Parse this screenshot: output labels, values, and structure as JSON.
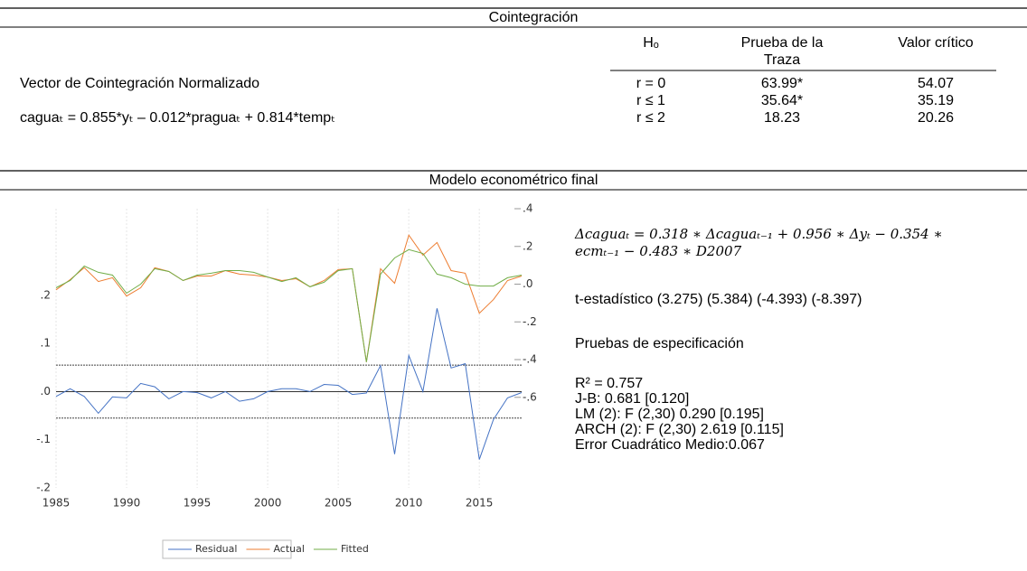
{
  "cointegration": {
    "title": "Cointegración",
    "headers": [
      "Hₒ",
      "Prueba de la Traza",
      "Valor crítico"
    ],
    "rows": [
      [
        "r = 0",
        "63.99*",
        "54.07"
      ],
      [
        "r ≤ 1",
        "35.64*",
        "35.19"
      ],
      [
        "r ≤ 2",
        "18.23",
        "20.26"
      ]
    ],
    "vector_label": "Vector de Cointegración Normalizado",
    "vector_equation": "caguaₜ = 0.855*yₜ – 0.012*praguaₜ + 0.814*tempₜ"
  },
  "model": {
    "title": "Modelo econométrico final",
    "equation": [
      "Δcaguaₜ = 0.318 ∗ Δcaguaₜ₋₁ + 0.956 ∗ Δyₜ − 0.354 ∗",
      "ecmₜ₋₁ − 0.483 ∗ D2007"
    ],
    "t_stats": "t-estadístico (3.275)  (5.384) (-4.393)  (-8.397)",
    "tests_title": "Pruebas de especificación",
    "tests": [
      "R² = 0.757",
      "J-B: 0.681 [0.120]",
      "LM (2): F (2,30) 0.290 [0.195]",
      "ARCH (2): F (2,30) 2.619 [0.115]",
      "Error Cuadrático Medio:0.067"
    ]
  },
  "chart_data": {
    "type": "line",
    "x": [
      1985,
      1986,
      1987,
      1988,
      1989,
      1990,
      1991,
      1992,
      1993,
      1994,
      1995,
      1996,
      1997,
      1998,
      1999,
      2000,
      2001,
      2002,
      2003,
      2004,
      2005,
      2006,
      2007,
      2008,
      2009,
      2010,
      2011,
      2012,
      2013,
      2014,
      2015,
      2016,
      2017,
      2018
    ],
    "xlim": [
      1985,
      2018
    ],
    "xticks": [
      1985,
      1990,
      1995,
      2000,
      2005,
      2010,
      2015
    ],
    "ylim": [
      -0.2,
      0.38
    ],
    "yticks": [
      {
        "value": 0.2,
        "label": ".2"
      },
      {
        "value": 0.1,
        "label": ".1"
      },
      {
        "value": 0,
        "label": ".0"
      },
      {
        "value": -0.1,
        "label": "-.1"
      },
      {
        "value": -0.2,
        "label": "-.2"
      }
    ],
    "y2lim": [
      -1.08,
      0.4
    ],
    "y2ticks": [
      {
        "value": 0.4,
        "label": ".4"
      },
      {
        "value": 0.2,
        "label": ".2"
      },
      {
        "value": 0,
        "label": ".0"
      },
      {
        "value": -0.2,
        "label": "-.2"
      },
      {
        "value": -0.4,
        "label": "-.4"
      },
      {
        "value": -0.6,
        "label": "-.6"
      }
    ],
    "bands": [
      0.055,
      -0.055
    ],
    "grid": true,
    "series": [
      {
        "name": "Residual",
        "color": "#4472c4",
        "axis": "y",
        "values": [
          -0.01,
          0.006,
          -0.01,
          -0.045,
          -0.011,
          -0.013,
          0.017,
          0.01,
          -0.015,
          0.0,
          -0.002,
          -0.013,
          0.0,
          -0.02,
          -0.015,
          0.0,
          0.006,
          0.006,
          0.0,
          0.015,
          0.013,
          -0.006,
          -0.003,
          0.054,
          -0.13,
          0.075,
          0.0,
          0.173,
          0.049,
          0.058,
          -0.141,
          -0.058,
          -0.013,
          -0.002
        ]
      },
      {
        "name": "Actual",
        "color": "#ed7d31",
        "axis": "y2",
        "values": [
          -0.03,
          0.024,
          0.087,
          0.014,
          0.034,
          -0.063,
          -0.019,
          0.087,
          0.067,
          0.019,
          0.043,
          0.043,
          0.072,
          0.053,
          0.048,
          0.038,
          0.019,
          0.029,
          -0.014,
          0.019,
          0.077,
          0.082,
          -0.413,
          0.082,
          0.005,
          0.26,
          0.154,
          0.221,
          0.072,
          0.058,
          -0.154,
          -0.082,
          0.019,
          0.043
        ]
      },
      {
        "name": "Fitted",
        "color": "#70ad47",
        "axis": "y2",
        "values": [
          -0.019,
          0.019,
          0.096,
          0.063,
          0.048,
          -0.048,
          0.0,
          0.082,
          0.067,
          0.019,
          0.048,
          0.058,
          0.072,
          0.072,
          0.063,
          0.038,
          0.014,
          0.034,
          -0.014,
          0.01,
          0.072,
          0.082,
          -0.413,
          0.053,
          0.139,
          0.183,
          0.163,
          0.053,
          0.034,
          0.0,
          -0.01,
          -0.01,
          0.034,
          0.048
        ]
      }
    ]
  }
}
